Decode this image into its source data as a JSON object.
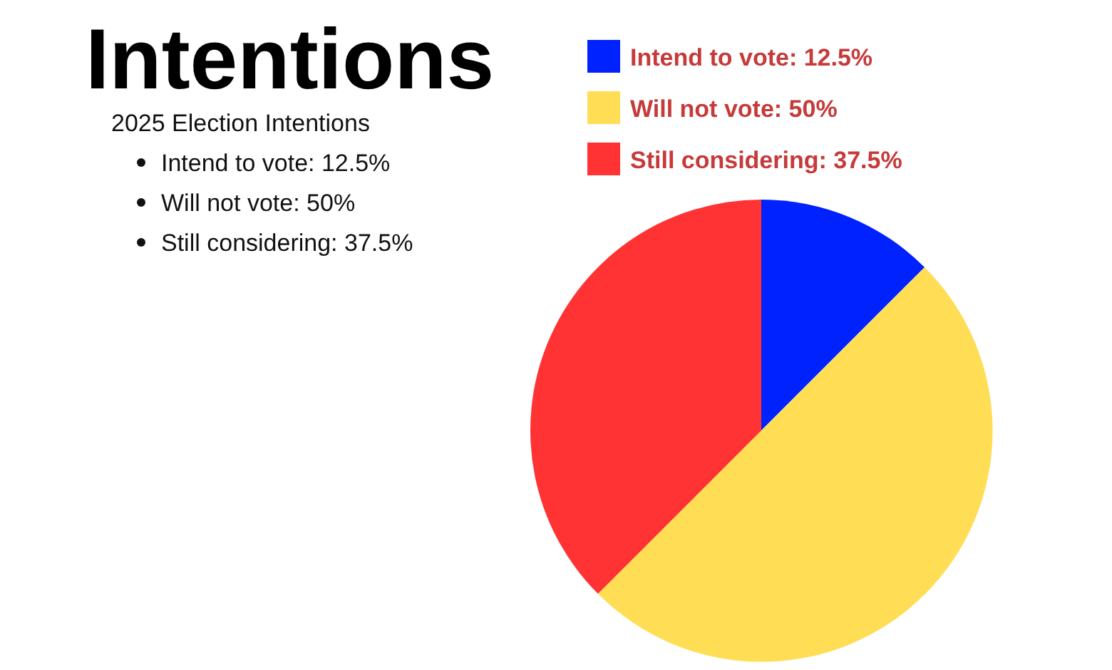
{
  "chart_data": {
    "type": "pie",
    "title": "Intentions",
    "categories": [
      "Intend to vote: 12.5%",
      "Will not vote: 50%",
      "Still considering: 37.5%"
    ],
    "values": [
      12.5,
      50,
      37.5
    ],
    "colors": [
      "#0022ff",
      "#ffdd55",
      "#ff3333"
    ],
    "legend": "top right",
    "annotations": [
      "2025 Election Intentions",
      "Intend to vote: 12.5%",
      "Will not vote: 50%",
      "Still considering: 37.5%"
    ]
  }
}
